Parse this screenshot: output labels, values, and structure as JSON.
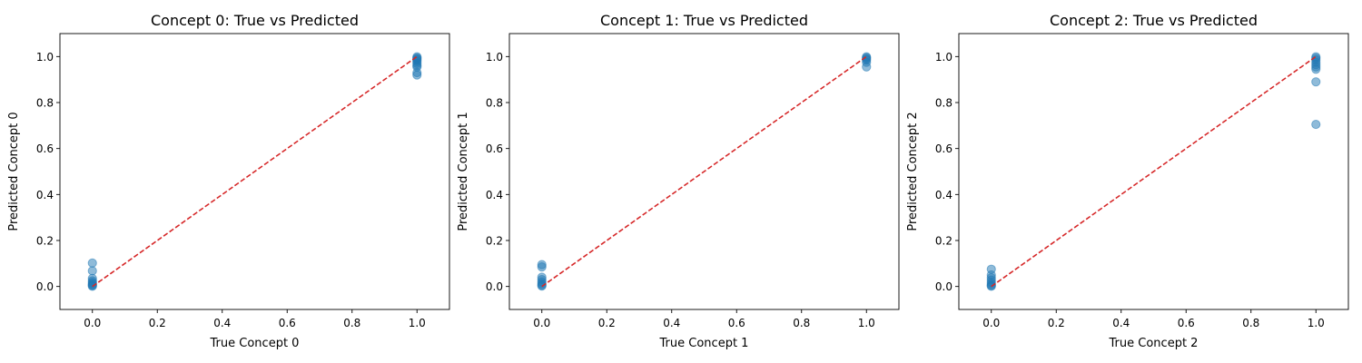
{
  "chart_data": [
    {
      "type": "scatter",
      "title": "Concept 0: True vs Predicted",
      "xlabel": "True Concept 0",
      "ylabel": "Predicted Concept 0",
      "xlim": [
        -0.1,
        1.1
      ],
      "ylim": [
        -0.1,
        1.1
      ],
      "xticks": [
        "0.0",
        "0.2",
        "0.4",
        "0.6",
        "0.8",
        "1.0"
      ],
      "yticks": [
        "0.0",
        "0.2",
        "0.4",
        "0.6",
        "0.8",
        "1.0"
      ],
      "grid": false,
      "reference_line": {
        "x": [
          0,
          1
        ],
        "y": [
          0,
          1
        ],
        "color": "#d62728",
        "style": "dashed"
      },
      "point_color": "#1f77b4",
      "points": [
        [
          0,
          0.102
        ],
        [
          0,
          0.068
        ],
        [
          0,
          0.035
        ],
        [
          0,
          0.025
        ],
        [
          0,
          0.018
        ],
        [
          0,
          0.012
        ],
        [
          0,
          0.008
        ],
        [
          0,
          0.004
        ],
        [
          0,
          0.001
        ],
        [
          1,
          0.999
        ],
        [
          1,
          0.994
        ],
        [
          1,
          0.99
        ],
        [
          1,
          0.985
        ],
        [
          1,
          0.978
        ],
        [
          1,
          0.97
        ],
        [
          1,
          0.962
        ],
        [
          1,
          0.955
        ],
        [
          1,
          0.93
        ],
        [
          1,
          0.92
        ]
      ]
    },
    {
      "type": "scatter",
      "title": "Concept 1: True vs Predicted",
      "xlabel": "True Concept 1",
      "ylabel": "Predicted Concept 1",
      "xlim": [
        -0.1,
        1.1
      ],
      "ylim": [
        -0.1,
        1.1
      ],
      "xticks": [
        "0.0",
        "0.2",
        "0.4",
        "0.6",
        "0.8",
        "1.0"
      ],
      "yticks": [
        "0.0",
        "0.2",
        "0.4",
        "0.6",
        "0.8",
        "1.0"
      ],
      "grid": false,
      "reference_line": {
        "x": [
          0,
          1
        ],
        "y": [
          0,
          1
        ],
        "color": "#d62728",
        "style": "dashed"
      },
      "point_color": "#1f77b4",
      "points": [
        [
          0,
          0.095
        ],
        [
          0,
          0.085
        ],
        [
          0,
          0.04
        ],
        [
          0,
          0.03
        ],
        [
          0,
          0.02
        ],
        [
          0,
          0.012
        ],
        [
          0,
          0.006
        ],
        [
          0,
          0.002
        ],
        [
          1,
          0.999
        ],
        [
          1,
          0.995
        ],
        [
          1,
          0.99
        ],
        [
          1,
          0.985
        ],
        [
          1,
          0.975
        ],
        [
          1,
          0.955
        ]
      ]
    },
    {
      "type": "scatter",
      "title": "Concept 2: True vs Predicted",
      "xlabel": "True Concept 2",
      "ylabel": "Predicted Concept 2",
      "xlim": [
        -0.1,
        1.1
      ],
      "ylim": [
        -0.1,
        1.1
      ],
      "xticks": [
        "0.0",
        "0.2",
        "0.4",
        "0.6",
        "0.8",
        "1.0"
      ],
      "yticks": [
        "0.0",
        "0.2",
        "0.4",
        "0.6",
        "0.8",
        "1.0"
      ],
      "grid": false,
      "reference_line": {
        "x": [
          0,
          1
        ],
        "y": [
          0,
          1
        ],
        "color": "#d62728",
        "style": "dashed"
      },
      "point_color": "#1f77b4",
      "points": [
        [
          0,
          0.075
        ],
        [
          0,
          0.05
        ],
        [
          0,
          0.038
        ],
        [
          0,
          0.028
        ],
        [
          0,
          0.018
        ],
        [
          0,
          0.01
        ],
        [
          0,
          0.004
        ],
        [
          0,
          0.001
        ],
        [
          1,
          0.999
        ],
        [
          1,
          0.993
        ],
        [
          1,
          0.985
        ],
        [
          1,
          0.975
        ],
        [
          1,
          0.965
        ],
        [
          1,
          0.955
        ],
        [
          1,
          0.945
        ],
        [
          1,
          0.89
        ],
        [
          1,
          0.705
        ]
      ]
    }
  ]
}
